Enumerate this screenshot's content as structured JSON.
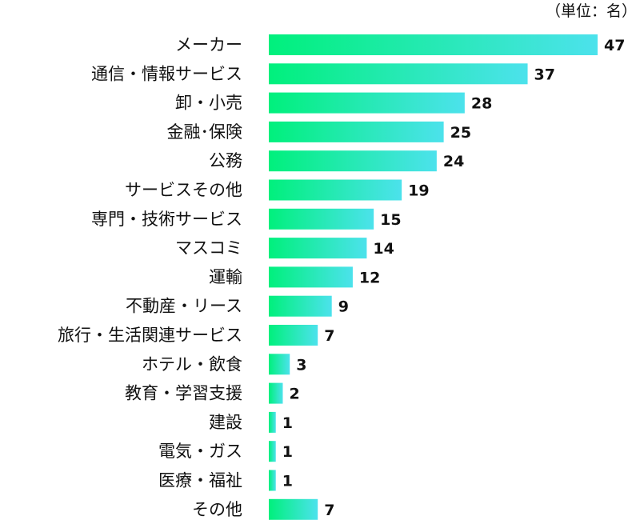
{
  "chart_data": {
    "type": "bar",
    "orientation": "horizontal",
    "unit_note": "（単位：名）",
    "categories": [
      "メーカー",
      "通信・情報サービス",
      "卸・小売",
      "金融･保険",
      "公務",
      "サービスその他",
      "専門・技術サービス",
      "マスコミ",
      "運輸",
      "不動産・リース",
      "旅行・生活関連サービス",
      "ホテル・飲食",
      "教育・学習支援",
      "建設",
      "電気・ガス",
      "医療・福祉",
      "その他"
    ],
    "values": [
      47,
      37,
      28,
      25,
      24,
      19,
      15,
      14,
      12,
      9,
      7,
      3,
      2,
      1,
      1,
      1,
      7
    ],
    "xlim": [
      0,
      47
    ],
    "grid": false,
    "legend": "none",
    "colors": {
      "bar_start": "#00f07c",
      "bar_end": "#4ce2ec",
      "text": "#111111"
    }
  }
}
